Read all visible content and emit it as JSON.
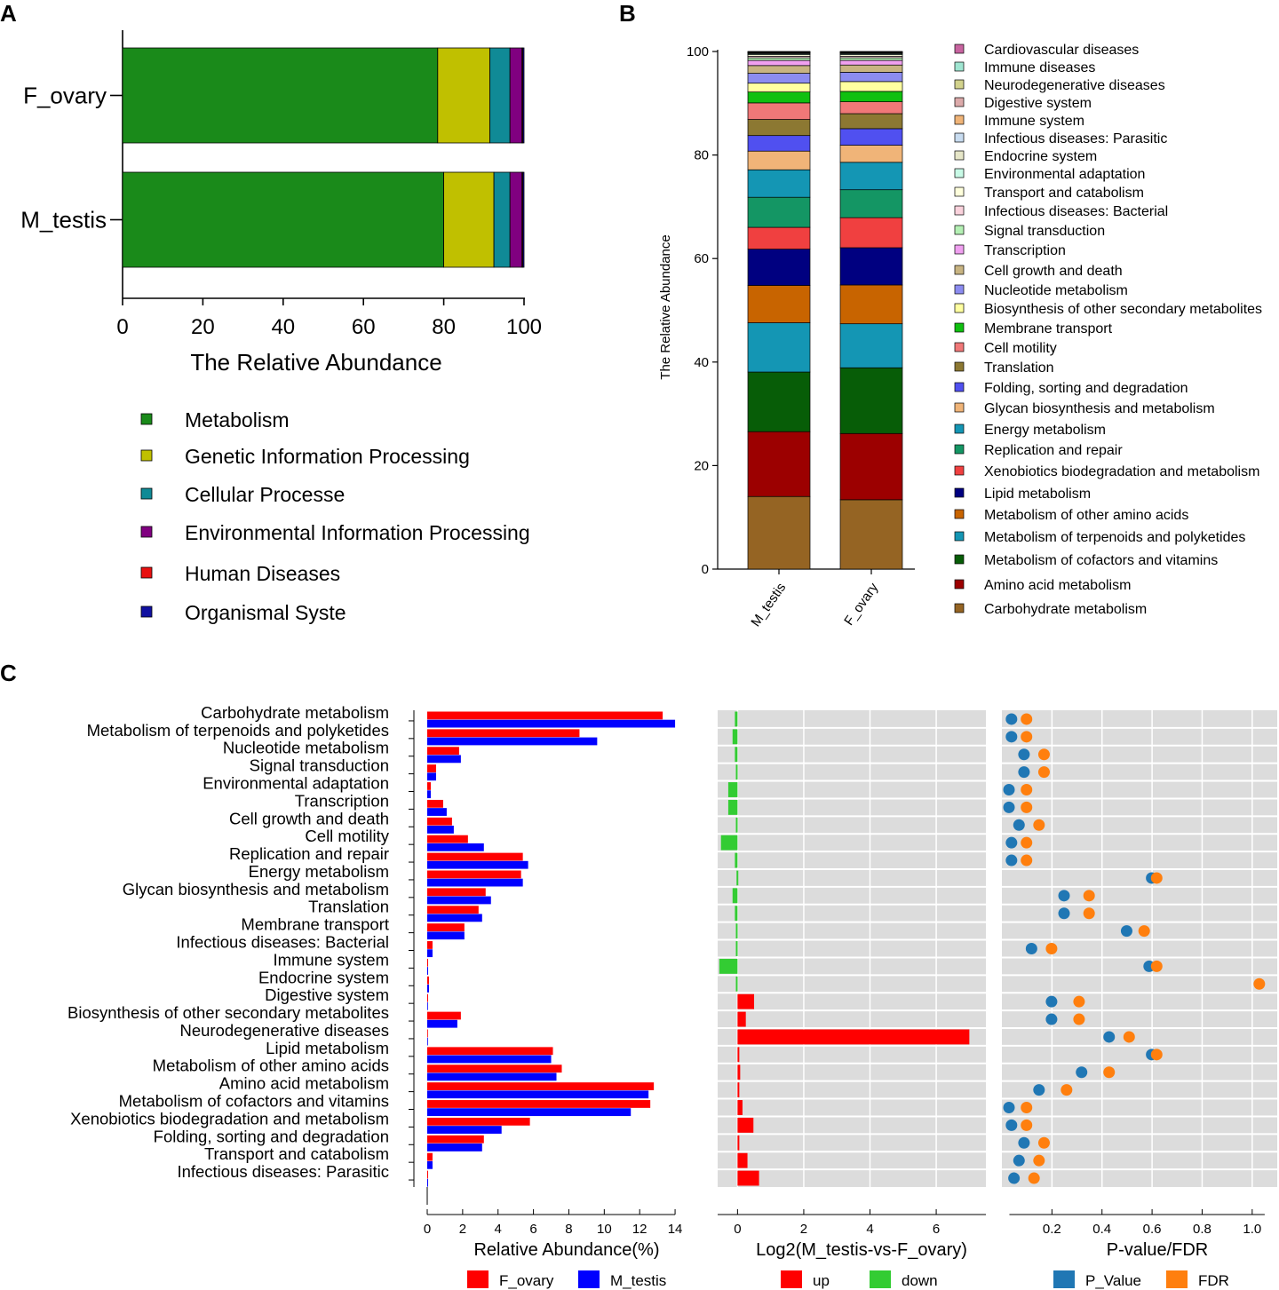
{
  "panel_letters": {
    "a": "A",
    "b": "B",
    "c": "C"
  },
  "chart_data": [
    {
      "panel": "A",
      "type": "bar",
      "orientation": "horizontal",
      "stacked": true,
      "xlabel": "The Relative Abundance",
      "xlim": [
        0,
        100
      ],
      "xticks": [
        "0",
        "20",
        "40",
        "60",
        "80",
        "100"
      ],
      "categories": [
        "F_ovary",
        "M_testis"
      ],
      "series": [
        {
          "name": "Metabolism",
          "color": "#1a8a1a",
          "values": [
            78.5,
            80.0
          ]
        },
        {
          "name": "Genetic Information Processing",
          "color": "#c0c000",
          "values": [
            13.0,
            12.5
          ]
        },
        {
          "name": "Cellular Processe",
          "color": "#108a96",
          "values": [
            5.0,
            4.0
          ]
        },
        {
          "name": "Environmental Information Processing",
          "color": "#800080",
          "values": [
            3.0,
            3.0
          ]
        },
        {
          "name": "Human Diseases",
          "color": "#e81010",
          "values": [
            0.2,
            0.2
          ]
        },
        {
          "name": "Organismal Syste",
          "color": "#1010a0",
          "values": [
            0.3,
            0.3
          ]
        }
      ]
    },
    {
      "panel": "B",
      "type": "bar",
      "orientation": "vertical",
      "stacked": true,
      "ylabel": "The Relative Abundance",
      "ylim": [
        0,
        100
      ],
      "yticks": [
        "0",
        "20",
        "40",
        "60",
        "80",
        "100"
      ],
      "categories": [
        "M_testis",
        "F_ovary"
      ],
      "series": [
        {
          "name": "Carbohydrate metabolism",
          "color": "#956423",
          "values": [
            14.0,
            13.4
          ]
        },
        {
          "name": " Amino acid metabolism",
          "color": "#9c0000",
          "values": [
            12.5,
            12.8
          ]
        },
        {
          "name": "Metabolism of cofactors and vitamins",
          "color": "#075d07",
          "values": [
            11.5,
            12.7
          ]
        },
        {
          "name": "Metabolism of terpenoids and polyketides",
          "color": "#1496b4",
          "values": [
            9.5,
            8.5
          ]
        },
        {
          "name": "Metabolism of other amino acids",
          "color": "#c86400",
          "values": [
            7.2,
            7.5
          ]
        },
        {
          "name": "Lipid metabolism",
          "color": "#000080",
          "values": [
            7.0,
            7.2
          ]
        },
        {
          "name": "Xenobiotics biodegradation and metabolism",
          "color": "#f04040",
          "values": [
            4.2,
            5.8
          ]
        },
        {
          "name": "Replication and repair",
          "color": "#149664",
          "values": [
            5.8,
            5.4
          ]
        },
        {
          "name": "Energy metabolism",
          "color": "#1496b4",
          "values": [
            5.3,
            5.3
          ]
        },
        {
          "name": "Glycan biosynthesis and metabolism",
          "color": "#f0b478",
          "values": [
            3.6,
            3.3
          ]
        },
        {
          "name": "Folding, sorting and degradation",
          "color": "#5050f0",
          "values": [
            3.0,
            3.2
          ]
        },
        {
          "name": "Translation",
          "color": "#8c7832",
          "values": [
            3.1,
            2.9
          ]
        },
        {
          "name": "Cell motility",
          "color": "#f07878",
          "values": [
            3.2,
            2.3
          ]
        },
        {
          "name": "Membrane transport",
          "color": "#10c010",
          "values": [
            2.1,
            2.0
          ]
        },
        {
          "name": "Biosynthesis of other secondary metabolites",
          "color": "#ffffa0",
          "values": [
            1.7,
            1.9
          ]
        },
        {
          "name": "Nucleotide metabolism",
          "color": "#8c8cf0",
          "values": [
            1.9,
            1.8
          ]
        },
        {
          "name": "Cell growth and death",
          "color": "#c8b482",
          "values": [
            1.5,
            1.4
          ]
        },
        {
          "name": "Transcription",
          "color": "#f0a0f0",
          "values": [
            1.0,
            0.9
          ]
        },
        {
          "name": "Signal transduction",
          "color": "#b4f0b4",
          "values": [
            0.5,
            0.5
          ]
        },
        {
          "name": "Infectious diseases: Bacterial",
          "color": "#fad2dc",
          "values": [
            0.3,
            0.3
          ]
        },
        {
          "name": "Transport and catabolism",
          "color": "#ffffdc",
          "values": [
            0.3,
            0.3
          ]
        },
        {
          "name": "Environmental adaptation",
          "color": "#c8fae6",
          "values": [
            0.2,
            0.2
          ]
        },
        {
          "name": "Endocrine system",
          "color": "#e6e6c8",
          "values": [
            0.1,
            0.1
          ]
        },
        {
          "name": "Infectious diseases: Parasitic",
          "color": "#c8dcf0",
          "values": [
            0.1,
            0.1
          ]
        },
        {
          "name": "Immune system",
          "color": "#f0b478",
          "values": [
            0.05,
            0.05
          ]
        },
        {
          "name": "Digestive system",
          "color": "#dcaaaa",
          "values": [
            0.05,
            0.05
          ]
        },
        {
          "name": "Neurodegenerative diseases",
          "color": "#d2d28c",
          "values": [
            0.05,
            0.05
          ]
        },
        {
          "name": "Immune diseases",
          "color": "#a0e6d2",
          "values": [
            0.03,
            0.03
          ]
        },
        {
          "name": "Cardiovascular diseases",
          "color": "#c864a0",
          "values": [
            0.03,
            0.03
          ]
        }
      ]
    },
    {
      "panel": "C",
      "type": "bar",
      "orientation": "horizontal",
      "categories": [
        "Carbohydrate metabolism",
        "Metabolism of terpenoids and polyketides",
        "Nucleotide metabolism",
        "Signal transduction",
        "Environmental adaptation",
        "Transcription",
        "Cell growth and death",
        "Cell motility",
        "Replication and repair",
        "Energy metabolism",
        "Glycan biosynthesis and metabolism",
        "Translation",
        "Membrane transport",
        "Infectious diseases: Bacterial",
        "Immune system",
        "Endocrine system",
        "Digestive system",
        "Biosynthesis of other secondary metabolites",
        "Neurodegenerative diseases",
        "Lipid metabolism",
        "Metabolism of other amino acids",
        "Amino acid metabolism",
        "Metabolism of cofactors and vitamins",
        "Xenobiotics biodegradation and metabolism",
        "Folding, sorting and degradation",
        "Transport and catabolism",
        "Infectious diseases: Parasitic"
      ],
      "abundance": {
        "xlabel": "Relative Abundance(%)",
        "xlim": [
          0,
          15
        ],
        "xticks": [
          "0",
          "2",
          "4",
          "6",
          "8",
          "10",
          "12",
          "14"
        ],
        "series": [
          {
            "name": "F_ovary",
            "color": "#ff0000",
            "values": [
              13.3,
              8.6,
              1.8,
              0.5,
              0.2,
              0.9,
              1.4,
              2.3,
              5.4,
              5.3,
              3.3,
              2.9,
              2.1,
              0.3,
              0.05,
              0.1,
              0.05,
              1.9,
              0.02,
              7.1,
              7.6,
              12.8,
              12.6,
              5.8,
              3.2,
              0.3,
              0.05
            ]
          },
          {
            "name": "M_testis",
            "color": "#0000ff",
            "values": [
              14.0,
              9.6,
              1.9,
              0.5,
              0.2,
              1.1,
              1.5,
              3.2,
              5.7,
              5.4,
              3.6,
              3.1,
              2.1,
              0.3,
              0.05,
              0.1,
              0.03,
              1.7,
              0.02,
              7.0,
              7.3,
              12.5,
              11.5,
              4.2,
              3.1,
              0.3,
              0.05
            ]
          }
        ]
      },
      "log2fc": {
        "xlabel": "Log2(M_testis-vs-F_ovary)",
        "xlim": [
          -0.6,
          7.5
        ],
        "xticks": [
          "0",
          "2",
          "4",
          "6"
        ],
        "legend": [
          {
            "name": "up",
            "color": "#ff0000"
          },
          {
            "name": "down",
            "color": "#33cc33"
          }
        ],
        "values": [
          -0.08,
          -0.15,
          -0.08,
          -0.05,
          -0.28,
          -0.28,
          -0.05,
          -0.5,
          -0.08,
          -0.03,
          -0.15,
          -0.08,
          -0.05,
          -0.05,
          -0.55,
          -0.05,
          0.5,
          0.25,
          7.0,
          0.05,
          0.08,
          0.05,
          0.15,
          0.48,
          0.05,
          0.3,
          0.65
        ]
      },
      "pvalue": {
        "xlabel": "P-value/FDR",
        "xlim": [
          0,
          1.1
        ],
        "xticks": [
          "0.2",
          "0.4",
          "0.6",
          "0.8",
          "1.0"
        ],
        "series": [
          {
            "name": "P_Value",
            "color": "#2077b4",
            "values": [
              0.01,
              0.01,
              0.06,
              0.06,
              0.0,
              0.0,
              0.04,
              0.01,
              0.01,
              0.57,
              0.22,
              0.22,
              0.47,
              0.09,
              0.56,
              null,
              0.17,
              0.17,
              0.4,
              0.57,
              0.29,
              0.12,
              0.0,
              0.01,
              0.06,
              0.04,
              0.02
            ]
          },
          {
            "name": "FDR",
            "color": "#ff7f0e",
            "values": [
              0.07,
              0.07,
              0.14,
              0.14,
              0.07,
              0.07,
              0.12,
              0.07,
              0.07,
              0.59,
              0.32,
              0.32,
              0.54,
              0.17,
              0.59,
              1.0,
              0.28,
              0.28,
              0.48,
              0.59,
              0.4,
              0.23,
              0.07,
              0.07,
              0.14,
              0.12,
              0.1
            ]
          }
        ]
      }
    }
  ]
}
